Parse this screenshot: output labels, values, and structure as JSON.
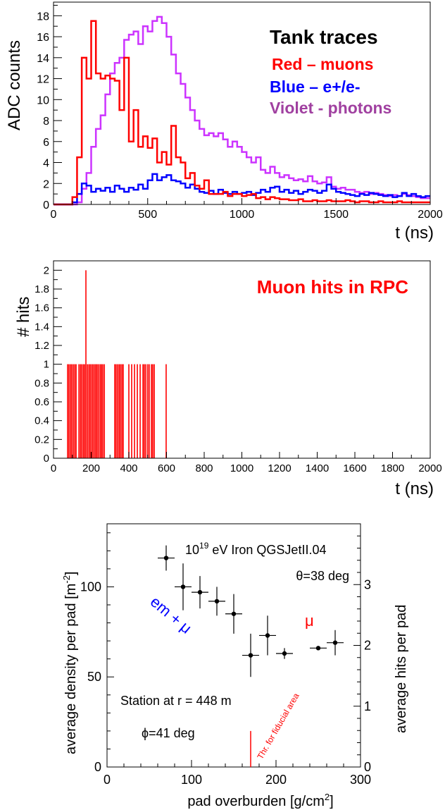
{
  "chart_data": [
    {
      "type": "line",
      "title": "Tank traces",
      "legend_placement": "top-right",
      "xlabel": "t (ns)",
      "ylabel": "ADC counts",
      "xlim": [
        0,
        2000
      ],
      "ylim": [
        0,
        19.3
      ],
      "x_ticks": [
        0,
        500,
        1000,
        1500,
        2000
      ],
      "y_ticks": [
        0,
        2,
        4,
        6,
        8,
        10,
        12,
        14,
        16,
        18
      ],
      "grid": false,
      "bin_width": 25,
      "series": [
        {
          "name": "Red – muons",
          "color": "#ff0000",
          "bin_start": [
            0,
            25,
            50,
            75,
            100,
            125,
            150,
            175,
            200,
            225,
            250,
            275,
            300,
            325,
            350,
            375,
            400,
            425,
            450,
            475,
            500,
            525,
            550,
            575,
            600,
            625,
            650,
            675,
            700,
            725,
            750,
            775,
            800,
            825,
            850,
            875,
            900,
            925,
            950,
            975,
            1000,
            1025,
            1050,
            1075,
            1100,
            1125,
            1150,
            1175,
            1200,
            1225,
            1250,
            1275,
            1300,
            1325,
            1350,
            1375,
            1400,
            1425,
            1450,
            1475,
            1500,
            1525,
            1550,
            1575,
            1600,
            1625,
            1650,
            1675,
            1700,
            1725,
            1750,
            1775,
            1800,
            1825,
            1850,
            1875,
            1900,
            1925,
            1950,
            1975
          ],
          "values": [
            0,
            0,
            0,
            0,
            0.7,
            4.5,
            14,
            12,
            17.5,
            12.5,
            12,
            12.3,
            12,
            11.8,
            9,
            14,
            6,
            9,
            5.5,
            6.5,
            5.4,
            6.3,
            4,
            5,
            3.8,
            7.5,
            4.5,
            4,
            2.5,
            3,
            1.8,
            1.5,
            2.3,
            1,
            1,
            1,
            1.2,
            0.8,
            1,
            1,
            0.8,
            0.9,
            1,
            0.6,
            0.7,
            0.5,
            0.7,
            0.6,
            0.5,
            0.5,
            0.4,
            0.4,
            0.5,
            0.3,
            0.3,
            0.4,
            0.3,
            0.3,
            0.4,
            0.3,
            0.3,
            0.3,
            0.4,
            0.3,
            0.2,
            0.3,
            0.3,
            0.2,
            0.2,
            0.3,
            0.2,
            0.2,
            0.2,
            0.3,
            0.2,
            0.2,
            0.2,
            0.2,
            0.2,
            0.2
          ]
        },
        {
          "name": "Blue – e+/e-",
          "color": "#0000ff",
          "bin_start": [
            0,
            25,
            50,
            75,
            100,
            125,
            150,
            175,
            200,
            225,
            250,
            275,
            300,
            325,
            350,
            375,
            400,
            425,
            450,
            475,
            500,
            525,
            550,
            575,
            600,
            625,
            650,
            675,
            700,
            725,
            750,
            775,
            800,
            825,
            850,
            875,
            900,
            925,
            950,
            975,
            1000,
            1025,
            1050,
            1075,
            1100,
            1125,
            1150,
            1175,
            1200,
            1225,
            1250,
            1275,
            1300,
            1325,
            1350,
            1375,
            1400,
            1425,
            1450,
            1475,
            1500,
            1525,
            1550,
            1575,
            1600,
            1625,
            1650,
            1675,
            1700,
            1725,
            1750,
            1775,
            1800,
            1825,
            1850,
            1875,
            1900,
            1925,
            1950,
            1975
          ],
          "values": [
            0,
            0,
            0,
            0,
            0.2,
            1,
            2,
            1.8,
            1.2,
            1.5,
            1.3,
            1.6,
            1.2,
            1.8,
            1.5,
            1.2,
            1.6,
            1.4,
            1.9,
            1.5,
            2.3,
            2.9,
            2.3,
            2.6,
            2.8,
            2.3,
            2.2,
            2,
            1.6,
            1.9,
            1.5,
            1.2,
            1.1,
            1.3,
            1,
            1.4,
            1.1,
            1,
            1.2,
            1,
            1.1,
            1.2,
            0.9,
            1.1,
            1.4,
            1.2,
            1.6,
            1.7,
            1.2,
            1.4,
            1.1,
            1.3,
            1,
            1.2,
            1.4,
            1.3,
            1.1,
            1.3,
            1.9,
            1.5,
            1.2,
            1.1,
            1,
            0.9,
            0.8,
            1,
            0.9,
            1.1,
            1,
            0.9,
            0.8,
            0.9,
            0.7,
            0.8,
            1.1,
            0.8,
            1,
            0.8,
            0.7,
            0.8
          ]
        },
        {
          "name": "Violet - photons",
          "color": "#cc33ff",
          "bin_start": [
            0,
            25,
            50,
            75,
            100,
            125,
            150,
            175,
            200,
            225,
            250,
            275,
            300,
            325,
            350,
            375,
            400,
            425,
            450,
            475,
            500,
            525,
            550,
            575,
            600,
            625,
            650,
            675,
            700,
            725,
            750,
            775,
            800,
            825,
            850,
            875,
            900,
            925,
            950,
            975,
            1000,
            1025,
            1050,
            1075,
            1100,
            1125,
            1150,
            1175,
            1200,
            1225,
            1250,
            1275,
            1300,
            1325,
            1350,
            1375,
            1400,
            1425,
            1450,
            1475,
            1500,
            1525,
            1550,
            1575,
            1600,
            1625,
            1650,
            1675,
            1700,
            1725,
            1750,
            1775,
            1800,
            1825,
            1850,
            1875,
            1900,
            1925,
            1950,
            1975
          ],
          "values": [
            0,
            0,
            0,
            0,
            0,
            0.2,
            1.5,
            3,
            5.5,
            7.2,
            8.5,
            10.5,
            12.5,
            13.5,
            14,
            15.7,
            16.2,
            16.5,
            15.3,
            17,
            16.5,
            17.5,
            17.9,
            17.3,
            16,
            14.3,
            12.5,
            11.5,
            10.2,
            9,
            8,
            7.2,
            6.6,
            6.8,
            6.5,
            6.8,
            6.2,
            5.5,
            6,
            5.5,
            5,
            4.5,
            4,
            4.5,
            3.3,
            3,
            3.6,
            3,
            2.6,
            2.8,
            2.5,
            2.3,
            2.4,
            2.2,
            2.7,
            2.2,
            2,
            2.1,
            2.6,
            1.7,
            1.5,
            1.6,
            1.4,
            1.4,
            1.2,
            1.1,
            1.2,
            1,
            1.1,
            1,
            0.9,
            0.8,
            0.9,
            0.8,
            1,
            0.9,
            0.8,
            0.7,
            0.6,
            0.6
          ]
        }
      ],
      "legend_lines": [
        "Red – muons",
        "Blue – e+/e-",
        "Violet - photons"
      ]
    },
    {
      "type": "bar",
      "title": "Muon hits in RPC",
      "legend_placement": "top-right",
      "xlabel": "t (ns)",
      "ylabel": "# hits",
      "xlim": [
        0,
        2000
      ],
      "ylim": [
        0,
        2.1
      ],
      "x_ticks": [
        0,
        200,
        400,
        600,
        800,
        1000,
        1200,
        1400,
        1600,
        1800,
        2000
      ],
      "y_ticks": [
        0,
        0.2,
        0.4,
        0.6,
        0.8,
        1,
        1.2,
        1.4,
        1.6,
        1.8,
        2
      ],
      "y_tick_labels": [
        "0",
        "0.2",
        "0.4",
        "0.6",
        "0.8",
        "1",
        "1.2",
        "1.4",
        "1.6",
        "1.8",
        "2"
      ],
      "grid": false,
      "color": "#ff0000",
      "hit_times": [
        75,
        82,
        90,
        97,
        105,
        113,
        120,
        135,
        143,
        150,
        158,
        165,
        172,
        180,
        188,
        195,
        203,
        210,
        218,
        225,
        232,
        240,
        248,
        255,
        262,
        270,
        325,
        332,
        340,
        348,
        355,
        363,
        370,
        400,
        415,
        430,
        445,
        460,
        475,
        482,
        490,
        500,
        508,
        520,
        527,
        535,
        598
      ],
      "hit_values": [
        1,
        1,
        1,
        1,
        1,
        1,
        1,
        1,
        1,
        1,
        1,
        1,
        2,
        1,
        1,
        1,
        1,
        1,
        1,
        1,
        1,
        1,
        1,
        1,
        1,
        1,
        1,
        1,
        1,
        1,
        1,
        1,
        1,
        1,
        1,
        1,
        1,
        1,
        1,
        1,
        1,
        1,
        1,
        1,
        1,
        1,
        1
      ]
    },
    {
      "type": "scatter",
      "xlabel": "pad overburden [g/cm",
      "xlabel_sup": "2",
      "xlabel_end": "]",
      "ylabel": "average density per pad [m",
      "ylabel_sup": "-2",
      "ylabel_end": "]",
      "y2label": "average hits per pad",
      "xlim": [
        0,
        300
      ],
      "ylim": [
        0,
        135
      ],
      "y2lim": [
        0,
        4
      ],
      "x_ticks": [
        0,
        100,
        200,
        300
      ],
      "y_ticks": [
        0,
        50,
        100
      ],
      "y2_ticks": [
        0,
        1,
        2,
        3
      ],
      "grid": false,
      "points": [
        {
          "x": 70,
          "y": 116,
          "xerr": 10,
          "yerr": 7
        },
        {
          "x": 90,
          "y": 100,
          "xerr": 10,
          "yerr": 13
        },
        {
          "x": 110,
          "y": 97,
          "xerr": 10,
          "yerr": 9
        },
        {
          "x": 130,
          "y": 92,
          "xerr": 10,
          "yerr": 8
        },
        {
          "x": 150,
          "y": 85,
          "xerr": 10,
          "yerr": 11
        },
        {
          "x": 170,
          "y": 62,
          "xerr": 10,
          "yerr": 12
        },
        {
          "x": 190,
          "y": 73,
          "xerr": 10,
          "yerr": 11
        },
        {
          "x": 210,
          "y": 63,
          "xerr": 10,
          "yerr": 3
        },
        {
          "x": 250,
          "y": 66,
          "xerr": 10,
          "yerr": 1
        },
        {
          "x": 270,
          "y": 69,
          "xerr": 10,
          "yerr": 7
        }
      ],
      "threshold": {
        "x": 170,
        "y_top": 20,
        "label": "Thr. for fiducial area",
        "color": "#ff0000"
      },
      "annotations": {
        "energy_exp": "19",
        "energy_base": "10",
        "energy_rest": " eV Iron QGSJetII.04",
        "theta": "θ=38 deg",
        "em_label": "em + μ",
        "mu_label": "μ",
        "station": "Station at r = 448 m",
        "phi": "ϕ=41 deg"
      }
    }
  ]
}
